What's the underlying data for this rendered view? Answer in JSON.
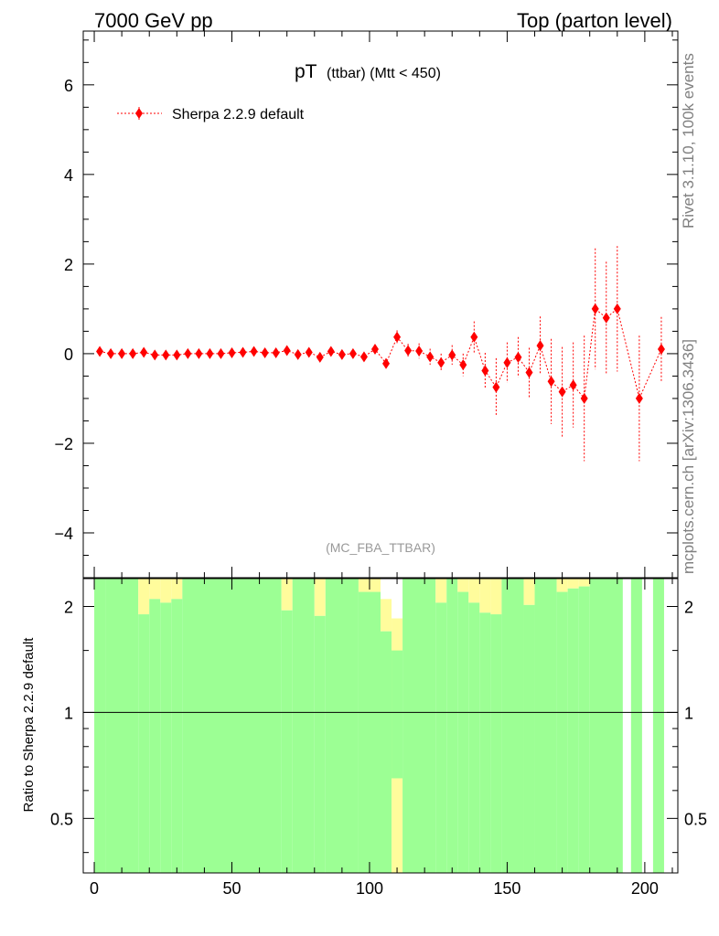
{
  "header": {
    "left": "7000 GeV pp",
    "right": "Top (parton level)"
  },
  "side_text": {
    "top": "Rivet 3.1.10,  100k events",
    "bottom": "mcplots.cern.ch [arXiv:1306.3436]"
  },
  "chart_data": {
    "type": "scatter",
    "title_main": "pT",
    "title_sub": "(ttbar) (Mtt < 450)",
    "analysis_label": "(MC_FBA_TTBAR)",
    "xlim": [
      -4,
      212
    ],
    "ylim": [
      -5,
      7.2
    ],
    "ratio_ylim": [
      0.35,
      2.4
    ],
    "ratio_ylabel": "Ratio to Sherpa 2.2.9 default",
    "x_tick_labels": [
      "0",
      "50",
      "100",
      "150",
      "200"
    ],
    "x_ticks": [
      0,
      50,
      100,
      150,
      200
    ],
    "y_ticks": [
      -4,
      -2,
      0,
      2,
      4,
      6
    ],
    "y_tick_labels": [
      "−4",
      "−2",
      "0",
      "2",
      "4",
      "6"
    ],
    "ratio_ticks": [
      0.5,
      1,
      2
    ],
    "ratio_tick_labels": [
      "0.5",
      "1",
      "2"
    ],
    "series": [
      {
        "name": "Sherpa 2.2.9 default",
        "color": "#ff0000",
        "points": [
          {
            "x": 2,
            "y": 0.05,
            "err": 0.03
          },
          {
            "x": 6,
            "y": 0.0,
            "err": 0.03
          },
          {
            "x": 10,
            "y": 0.0,
            "err": 0.03
          },
          {
            "x": 14,
            "y": 0.0,
            "err": 0.03
          },
          {
            "x": 18,
            "y": 0.03,
            "err": 0.03
          },
          {
            "x": 22,
            "y": -0.03,
            "err": 0.03
          },
          {
            "x": 26,
            "y": -0.03,
            "err": 0.03
          },
          {
            "x": 30,
            "y": -0.03,
            "err": 0.03
          },
          {
            "x": 34,
            "y": 0.0,
            "err": 0.03
          },
          {
            "x": 38,
            "y": 0.0,
            "err": 0.03
          },
          {
            "x": 42,
            "y": 0.0,
            "err": 0.03
          },
          {
            "x": 46,
            "y": 0.0,
            "err": 0.03
          },
          {
            "x": 50,
            "y": 0.02,
            "err": 0.03
          },
          {
            "x": 54,
            "y": 0.03,
            "err": 0.03
          },
          {
            "x": 58,
            "y": 0.05,
            "err": 0.03
          },
          {
            "x": 62,
            "y": 0.02,
            "err": 0.03
          },
          {
            "x": 66,
            "y": 0.02,
            "err": 0.03
          },
          {
            "x": 70,
            "y": 0.07,
            "err": 0.05
          },
          {
            "x": 74,
            "y": -0.02,
            "err": 0.05
          },
          {
            "x": 78,
            "y": 0.03,
            "err": 0.05
          },
          {
            "x": 82,
            "y": -0.08,
            "err": 0.06
          },
          {
            "x": 86,
            "y": 0.05,
            "err": 0.06
          },
          {
            "x": 90,
            "y": -0.02,
            "err": 0.06
          },
          {
            "x": 94,
            "y": 0.0,
            "err": 0.06
          },
          {
            "x": 98,
            "y": -0.07,
            "err": 0.07
          },
          {
            "x": 102,
            "y": 0.1,
            "err": 0.1
          },
          {
            "x": 106,
            "y": -0.22,
            "err": 0.12
          },
          {
            "x": 110,
            "y": 0.37,
            "err": 0.15
          },
          {
            "x": 114,
            "y": 0.07,
            "err": 0.15
          },
          {
            "x": 118,
            "y": 0.06,
            "err": 0.17
          },
          {
            "x": 122,
            "y": -0.07,
            "err": 0.18
          },
          {
            "x": 126,
            "y": -0.2,
            "err": 0.2
          },
          {
            "x": 130,
            "y": -0.03,
            "err": 0.22
          },
          {
            "x": 134,
            "y": -0.25,
            "err": 0.25
          },
          {
            "x": 138,
            "y": 0.37,
            "err": 0.35
          },
          {
            "x": 142,
            "y": -0.38,
            "err": 0.4
          },
          {
            "x": 146,
            "y": -0.75,
            "err": 0.65
          },
          {
            "x": 150,
            "y": -0.2,
            "err": 0.45
          },
          {
            "x": 154,
            "y": -0.08,
            "err": 0.45
          },
          {
            "x": 158,
            "y": -0.42,
            "err": 0.55
          },
          {
            "x": 162,
            "y": 0.18,
            "err": 0.65
          },
          {
            "x": 166,
            "y": -0.62,
            "err": 0.95
          },
          {
            "x": 170,
            "y": -0.85,
            "err": 1.0
          },
          {
            "x": 174,
            "y": -0.7,
            "err": 0.95
          },
          {
            "x": 178,
            "y": -1.0,
            "err": 1.4
          },
          {
            "x": 182,
            "y": 1.0,
            "err": 1.35
          },
          {
            "x": 186,
            "y": 0.8,
            "err": 1.25
          },
          {
            "x": 190,
            "y": 1.0,
            "err": 1.4
          },
          {
            "x": 198,
            "y": -1.0,
            "err": 1.4
          },
          {
            "x": 206,
            "y": 0.1,
            "err": 0.72
          }
        ]
      }
    ],
    "ratio_band": {
      "green_color": "#9cff94",
      "yellow_color": "#fffc9c",
      "bins": [
        {
          "x0": 0,
          "x1": 4,
          "g": [
            0.35,
            2.4
          ],
          "y": null
        },
        {
          "x0": 4,
          "x1": 16,
          "g": [
            0.35,
            2.4
          ],
          "y": null
        },
        {
          "x0": 16,
          "x1": 20,
          "g": [
            0.35,
            1.9
          ],
          "y": [
            1.9,
            2.4
          ]
        },
        {
          "x0": 20,
          "x1": 24,
          "g": [
            0.35,
            2.1
          ],
          "y": [
            2.1,
            2.4
          ]
        },
        {
          "x0": 24,
          "x1": 28,
          "g": [
            0.35,
            2.05
          ],
          "y": [
            2.05,
            2.4
          ]
        },
        {
          "x0": 28,
          "x1": 32,
          "g": [
            0.35,
            2.1
          ],
          "y": [
            2.1,
            2.4
          ]
        },
        {
          "x0": 32,
          "x1": 68,
          "g": [
            0.35,
            2.4
          ],
          "y": null
        },
        {
          "x0": 68,
          "x1": 72,
          "g": [
            0.35,
            1.95
          ],
          "y": [
            1.95,
            2.4
          ]
        },
        {
          "x0": 72,
          "x1": 80,
          "g": [
            0.35,
            2.4
          ],
          "y": null
        },
        {
          "x0": 80,
          "x1": 84,
          "g": [
            0.35,
            1.88
          ],
          "y": [
            1.88,
            2.4
          ]
        },
        {
          "x0": 84,
          "x1": 96,
          "g": [
            0.35,
            2.4
          ],
          "y": null
        },
        {
          "x0": 96,
          "x1": 104,
          "g": [
            0.35,
            2.2
          ],
          "y": [
            2.2,
            2.4
          ]
        },
        {
          "x0": 104,
          "x1": 108,
          "g": [
            0.35,
            1.7
          ],
          "y": [
            1.7,
            2.1
          ]
        },
        {
          "x0": 108,
          "x1": 112,
          "g": [
            0.65,
            1.5
          ],
          "y": [
            0.35,
            1.85
          ]
        },
        {
          "x0": 112,
          "x1": 124,
          "g": [
            0.35,
            2.4
          ],
          "y": null
        },
        {
          "x0": 124,
          "x1": 128,
          "g": [
            0.35,
            2.05
          ],
          "y": [
            2.05,
            2.4
          ]
        },
        {
          "x0": 128,
          "x1": 132,
          "g": [
            0.35,
            2.4
          ],
          "y": null
        },
        {
          "x0": 132,
          "x1": 136,
          "g": [
            0.35,
            2.2
          ],
          "y": [
            2.2,
            2.4
          ]
        },
        {
          "x0": 136,
          "x1": 140,
          "g": [
            0.35,
            2.05
          ],
          "y": [
            2.05,
            2.4
          ]
        },
        {
          "x0": 140,
          "x1": 144,
          "g": [
            0.35,
            1.92
          ],
          "y": [
            1.92,
            2.4
          ]
        },
        {
          "x0": 144,
          "x1": 148,
          "g": [
            0.35,
            1.9
          ],
          "y": [
            1.9,
            2.4
          ]
        },
        {
          "x0": 148,
          "x1": 156,
          "g": [
            0.35,
            2.4
          ],
          "y": null
        },
        {
          "x0": 156,
          "x1": 160,
          "g": [
            0.35,
            2.02
          ],
          "y": [
            2.02,
            2.4
          ]
        },
        {
          "x0": 160,
          "x1": 168,
          "g": [
            0.35,
            2.4
          ],
          "y": null
        },
        {
          "x0": 168,
          "x1": 172,
          "g": [
            0.35,
            2.2
          ],
          "y": [
            2.2,
            2.4
          ]
        },
        {
          "x0": 172,
          "x1": 176,
          "g": [
            0.35,
            2.25
          ],
          "y": [
            2.25,
            2.4
          ]
        },
        {
          "x0": 176,
          "x1": 180,
          "g": [
            0.35,
            2.28
          ],
          "y": [
            2.28,
            2.4
          ]
        },
        {
          "x0": 180,
          "x1": 192,
          "g": [
            0.35,
            2.4
          ],
          "y": null
        },
        {
          "x0": 195,
          "x1": 199,
          "g": [
            0.35,
            2.4
          ],
          "y": null
        },
        {
          "x0": 203,
          "x1": 207,
          "g": [
            0.35,
            2.4
          ],
          "y": null
        }
      ]
    }
  }
}
